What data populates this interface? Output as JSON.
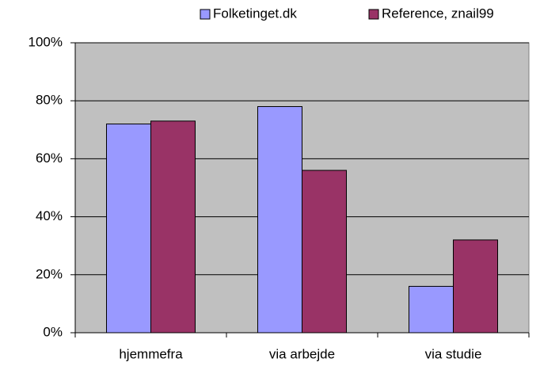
{
  "chart_data": {
    "type": "bar",
    "categories": [
      "hjemmefra",
      "via arbejde",
      "via studie"
    ],
    "series": [
      {
        "name": "Folketinget.dk",
        "color": "#9999ff",
        "values": [
          72,
          78,
          16
        ]
      },
      {
        "name": "Reference, znail99",
        "color": "#993366",
        "values": [
          73,
          56,
          32
        ]
      }
    ],
    "ylim": [
      0,
      100
    ],
    "yticks": [
      {
        "value": 0,
        "label": "0%"
      },
      {
        "value": 20,
        "label": "20%"
      },
      {
        "value": 40,
        "label": "40%"
      },
      {
        "value": 60,
        "label": "60%"
      },
      {
        "value": 80,
        "label": "80%"
      },
      {
        "value": 100,
        "label": "100%"
      }
    ],
    "grid": true,
    "legend": "top",
    "plot_background": "#c0c0c0"
  }
}
